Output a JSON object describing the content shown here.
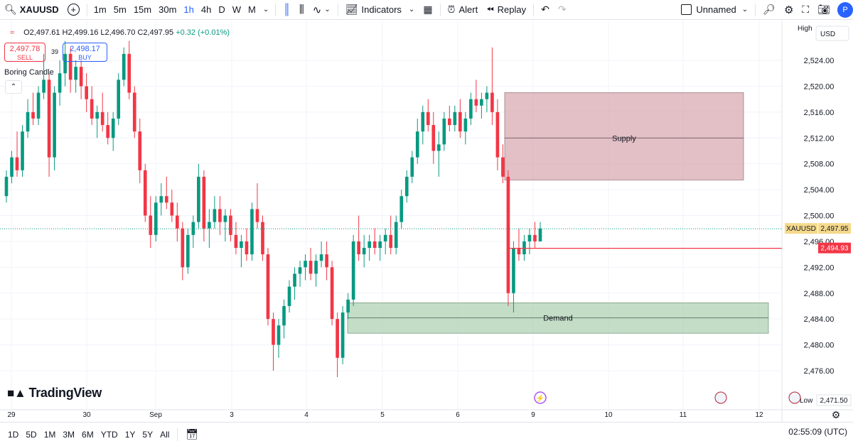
{
  "toolbar": {
    "symbol": "XAUUSD",
    "timeframes": [
      "1m",
      "5m",
      "15m",
      "30m",
      "1h",
      "4h",
      "D",
      "W",
      "M"
    ],
    "active_timeframe": "1h",
    "indicators_label": "Indicators",
    "alert_label": "Alert",
    "replay_label": "Replay",
    "layout_name": "Unnamed",
    "avatar_letter": "P"
  },
  "legend": {
    "open": "O2,497.61",
    "high": "H2,499.16",
    "low": "L2,496.70",
    "close": "C2,497.95",
    "change": "+0.32 (+0.01%)"
  },
  "trade": {
    "sell_price": "2,497.78",
    "sell_label": "SELL",
    "spread": "39",
    "buy_price": "2,498.17",
    "buy_label": "BUY"
  },
  "indicator_name": "Boring Candle",
  "price_scale": {
    "currency": "USD",
    "high_label": "High",
    "low_label": "Low",
    "ticks": [
      "2,524.00",
      "2,520.00",
      "2,516.00",
      "2,512.00",
      "2,508.00",
      "2,504.00",
      "2,500.00",
      "2,496.00",
      "2,492.00",
      "2,488.00",
      "2,484.00",
      "2,480.00",
      "2,476.00"
    ],
    "last_price_symbol": "XAUUSD",
    "last_price": "2,497.95",
    "line_price": "2,494.93",
    "low_price": "2,471.50"
  },
  "time_axis": [
    "29",
    "30",
    "Sep",
    "3",
    "4",
    "5",
    "6",
    "9",
    "10",
    "11",
    "12"
  ],
  "zones": {
    "supply_label": "Supply",
    "demand_label": "Demand"
  },
  "branding": "TradingView",
  "bottombar": {
    "ranges": [
      "1D",
      "5D",
      "1M",
      "3M",
      "6M",
      "YTD",
      "1Y",
      "5Y",
      "All"
    ],
    "clock": "02:55:09 (UTC)"
  },
  "colors": {
    "up": "#089981",
    "down": "#f23645",
    "supply_fill": "#d9a9b3",
    "demand_fill": "#a9cfae",
    "accent": "#2962ff"
  },
  "chart_data": {
    "type": "candlestick",
    "ylim": [
      2470,
      2528
    ],
    "candles": [
      [
        2503,
        2507,
        2502,
        2506
      ],
      [
        2506,
        2510,
        2505,
        2509
      ],
      [
        2509,
        2513,
        2506,
        2507
      ],
      [
        2507,
        2514,
        2506,
        2513
      ],
      [
        2513,
        2518,
        2512,
        2516
      ],
      [
        2516,
        2519,
        2514,
        2515
      ],
      [
        2515,
        2520,
        2514,
        2519
      ],
      [
        2519,
        2525,
        2518,
        2521
      ],
      [
        2521,
        2522,
        2506,
        2509
      ],
      [
        2509,
        2520,
        2507,
        2519
      ],
      [
        2519,
        2524,
        2517,
        2522
      ],
      [
        2522,
        2527,
        2520,
        2525
      ],
      [
        2525,
        2526,
        2519,
        2521
      ],
      [
        2521,
        2524,
        2519,
        2523
      ],
      [
        2523,
        2524,
        2518,
        2520
      ],
      [
        2520,
        2522,
        2516,
        2518
      ],
      [
        2518,
        2520,
        2514,
        2515
      ],
      [
        2515,
        2517,
        2512,
        2516
      ],
      [
        2516,
        2519,
        2513,
        2514
      ],
      [
        2514,
        2516,
        2511,
        2512
      ],
      [
        2512,
        2516,
        2510,
        2515
      ],
      [
        2515,
        2522,
        2514,
        2521
      ],
      [
        2521,
        2526,
        2520,
        2525
      ],
      [
        2525,
        2527,
        2518,
        2519
      ],
      [
        2519,
        2520,
        2512,
        2513
      ],
      [
        2513,
        2515,
        2505,
        2507
      ],
      [
        2507,
        2508,
        2499,
        2500
      ],
      [
        2500,
        2503,
        2495,
        2497
      ],
      [
        2497,
        2503,
        2496,
        2502
      ],
      [
        2502,
        2505,
        2500,
        2503
      ],
      [
        2503,
        2506,
        2501,
        2502
      ],
      [
        2502,
        2504,
        2499,
        2500
      ],
      [
        2500,
        2502,
        2496,
        2498
      ],
      [
        2498,
        2499,
        2490,
        2492
      ],
      [
        2492,
        2498,
        2491,
        2497
      ],
      [
        2497,
        2500,
        2495,
        2499
      ],
      [
        2499,
        2508,
        2498,
        2506
      ],
      [
        2506,
        2507,
        2496,
        2498
      ],
      [
        2498,
        2501,
        2495,
        2499
      ],
      [
        2499,
        2503,
        2498,
        2501
      ],
      [
        2501,
        2503,
        2497,
        2499
      ],
      [
        2499,
        2501,
        2496,
        2500
      ],
      [
        2500,
        2501,
        2496,
        2497
      ],
      [
        2497,
        2499,
        2494,
        2495
      ],
      [
        2495,
        2497,
        2492,
        2496
      ],
      [
        2496,
        2498,
        2493,
        2494
      ],
      [
        2494,
        2502,
        2493,
        2501
      ],
      [
        2501,
        2505,
        2498,
        2499
      ],
      [
        2499,
        2500,
        2493,
        2494
      ],
      [
        2494,
        2495,
        2483,
        2484
      ],
      [
        2484,
        2485,
        2476,
        2480
      ],
      [
        2480,
        2484,
        2478,
        2483
      ],
      [
        2483,
        2487,
        2481,
        2486
      ],
      [
        2486,
        2490,
        2485,
        2489
      ],
      [
        2489,
        2492,
        2487,
        2491
      ],
      [
        2491,
        2493,
        2489,
        2492
      ],
      [
        2492,
        2494,
        2490,
        2493
      ],
      [
        2493,
        2495,
        2490,
        2491
      ],
      [
        2491,
        2494,
        2489,
        2493
      ],
      [
        2493,
        2496,
        2492,
        2494
      ],
      [
        2494,
        2496,
        2490,
        2492
      ],
      [
        2492,
        2493,
        2483,
        2484
      ],
      [
        2484,
        2485,
        2475,
        2478
      ],
      [
        2478,
        2486,
        2477,
        2485
      ],
      [
        2485,
        2488,
        2484,
        2487
      ],
      [
        2487,
        2497,
        2486,
        2496
      ],
      [
        2496,
        2500,
        2493,
        2494
      ],
      [
        2494,
        2497,
        2492,
        2495
      ],
      [
        2495,
        2497,
        2493,
        2496
      ],
      [
        2496,
        2498,
        2494,
        2495
      ],
      [
        2495,
        2497,
        2493,
        2496
      ],
      [
        2496,
        2498,
        2494,
        2497
      ],
      [
        2497,
        2500,
        2494,
        2495
      ],
      [
        2495,
        2500,
        2494,
        2499
      ],
      [
        2499,
        2504,
        2498,
        2503
      ],
      [
        2503,
        2507,
        2502,
        2506
      ],
      [
        2506,
        2510,
        2505,
        2509
      ],
      [
        2509,
        2515,
        2508,
        2513
      ],
      [
        2513,
        2517,
        2511,
        2516
      ],
      [
        2516,
        2518,
        2513,
        2514
      ],
      [
        2514,
        2516,
        2508,
        2510
      ],
      [
        2510,
        2513,
        2506,
        2511
      ],
      [
        2511,
        2516,
        2510,
        2515
      ],
      [
        2515,
        2517,
        2513,
        2514
      ],
      [
        2514,
        2517,
        2513,
        2516
      ],
      [
        2516,
        2518,
        2512,
        2513
      ],
      [
        2513,
        2516,
        2511,
        2515
      ],
      [
        2515,
        2519,
        2514,
        2518
      ],
      [
        2518,
        2521,
        2516,
        2517
      ],
      [
        2517,
        2519,
        2515,
        2518
      ],
      [
        2518,
        2520,
        2516,
        2519
      ],
      [
        2519,
        2526,
        2514,
        2516
      ],
      [
        2516,
        2518,
        2507,
        2509
      ],
      [
        2509,
        2511,
        2505,
        2506
      ],
      [
        2506,
        2507,
        2486,
        2488
      ],
      [
        2488,
        2496,
        2485,
        2495
      ],
      [
        2495,
        2498,
        2493,
        2494
      ],
      [
        2494,
        2497,
        2493,
        2496
      ],
      [
        2496,
        2498,
        2494,
        2497
      ],
      [
        2497,
        2499,
        2495,
        2496
      ],
      [
        2496,
        2499,
        2496,
        2498
      ]
    ]
  }
}
